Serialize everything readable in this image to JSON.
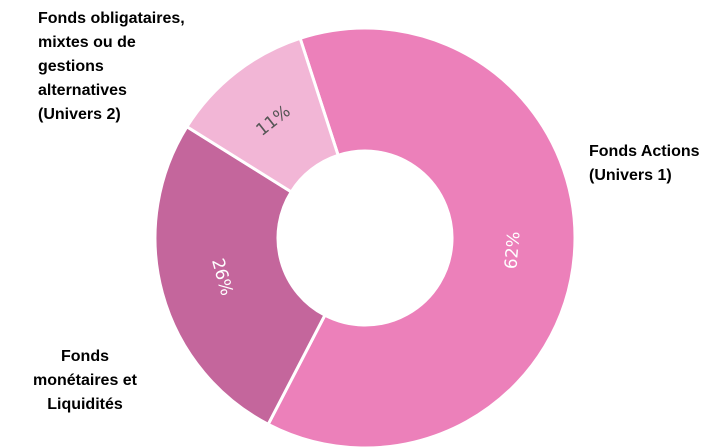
{
  "chart_data": {
    "type": "pie",
    "donut": true,
    "title": "",
    "legend": "labels placed outside the ring",
    "slices": [
      {
        "name": "Fonds Actions (Univers 1)",
        "name_lines": [
          "Fonds Actions",
          "(Univers 1)"
        ],
        "value": 62,
        "label": "62%",
        "color": "#ec80ba",
        "label_color": "#ffffff"
      },
      {
        "name": "Fonds monétaires et Liquidités",
        "name_lines": [
          "Fonds",
          "monétaires et",
          "Liquidités"
        ],
        "value": 26,
        "label": "26%",
        "color": "#c4669c",
        "label_color": "#ffffff"
      },
      {
        "name": "Fonds obligataires, mixtes ou de gestions alternatives (Univers 2)",
        "name_lines": [
          "Fonds  obligataires,",
          "mixtes ou de",
          "gestions",
          "alternatives",
          "(Univers 2)"
        ],
        "value": 11,
        "label": "11%",
        "color": "#f2b6d6",
        "label_color": "#555555"
      }
    ]
  }
}
